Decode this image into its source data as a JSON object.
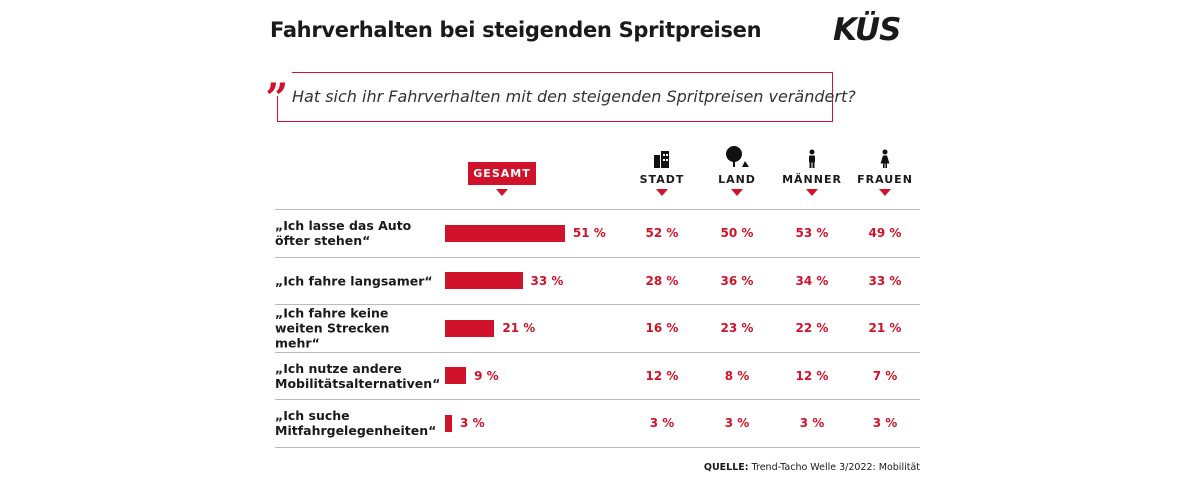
{
  "chart_data": {
    "type": "bar",
    "title": "Fahrverhalten bei steigenden Spritpreisen",
    "logo": "KÜS",
    "question": "Hat sich ihr Fahrverhalten mit den steigenden Spritpreisen verändert?",
    "categories": [
      "„Ich lasse das Auto öfter stehen“",
      "„Ich fahre langsamer“",
      "„Ich fahre keine weiten Strecken mehr“",
      "„Ich nutze andere Mobilitätsalternativen“",
      "„Ich suche Mitfahrgelegenheiten“"
    ],
    "color": "#d0122a",
    "series": [
      {
        "name": "GESAMT",
        "values": [
          51,
          33,
          21,
          9,
          3
        ],
        "value_labels": [
          "51 %",
          "33 %",
          "21 %",
          "9 %",
          "3 %"
        ]
      },
      {
        "name": "STADT",
        "values": [
          52,
          28,
          16,
          12,
          3
        ],
        "value_labels": [
          "52 %",
          "28 %",
          "16 %",
          "12 %",
          "3 %"
        ]
      },
      {
        "name": "LAND",
        "values": [
          50,
          36,
          23,
          8,
          3
        ],
        "value_labels": [
          "50 %",
          "36 %",
          "23 %",
          "8 %",
          "3 %"
        ]
      },
      {
        "name": "MÄNNER",
        "values": [
          53,
          34,
          22,
          12,
          3
        ],
        "value_labels": [
          "53 %",
          "34 %",
          "22 %",
          "12 %",
          "3 %"
        ]
      },
      {
        "name": "FRAUEN",
        "values": [
          49,
          33,
          21,
          7,
          3
        ],
        "value_labels": [
          "49 %",
          "33 %",
          "21 %",
          "7 %",
          "3 %"
        ]
      }
    ],
    "source_label": "QUELLE:",
    "source": "Trend-Tacho Welle 3/2022: Mobilität"
  }
}
